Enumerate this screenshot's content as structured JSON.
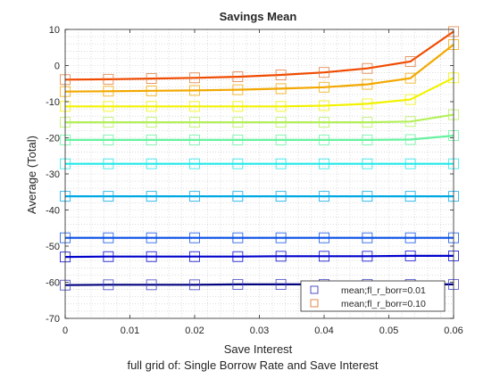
{
  "chart_data": {
    "type": "line",
    "title": "Savings Mean",
    "xlabel": "Save Interest",
    "ylabel": "Average (Total)",
    "subtitle": "full grid of: Single Borrow Rate and Save Interest",
    "xlim": [
      0,
      0.06
    ],
    "ylim": [
      -70,
      10
    ],
    "xticks": [
      0,
      0.01,
      0.02,
      0.03,
      0.04,
      0.05,
      0.06
    ],
    "xtick_labels": [
      "0",
      "0.01",
      "0.02",
      "0.03",
      "0.04",
      "0.05",
      "0.06"
    ],
    "yticks": [
      -70,
      -60,
      -50,
      -40,
      -30,
      -20,
      -10,
      0,
      10
    ],
    "ytick_labels": [
      "-70",
      "-60",
      "-50",
      "-40",
      "-30",
      "-20",
      "-10",
      "0",
      "10"
    ],
    "grid": "minor dotted",
    "legend_position": "bottom-right",
    "x": [
      0,
      0.00667,
      0.01333,
      0.02,
      0.02667,
      0.03333,
      0.04,
      0.04667,
      0.05333,
      0.06
    ],
    "series": [
      {
        "name": "mean;fl_r_borr=0.01",
        "color": "#00007f",
        "marker_color": "#3d3dbf",
        "values": [
          -60.8,
          -60.7,
          -60.7,
          -60.7,
          -60.6,
          -60.6,
          -60.6,
          -60.6,
          -60.6,
          -60.6
        ]
      },
      {
        "name": "",
        "color": "#0000cc",
        "values": [
          -53.0,
          -52.9,
          -52.9,
          -52.9,
          -52.9,
          -52.8,
          -52.8,
          -52.8,
          -52.7,
          -52.7
        ]
      },
      {
        "name": "",
        "color": "#0a50e6",
        "values": [
          -47.7,
          -47.7,
          -47.7,
          -47.7,
          -47.7,
          -47.7,
          -47.7,
          -47.7,
          -47.7,
          -47.7
        ]
      },
      {
        "name": "",
        "color": "#00a8e6",
        "values": [
          -36.2,
          -36.2,
          -36.2,
          -36.2,
          -36.2,
          -36.2,
          -36.2,
          -36.2,
          -36.2,
          -36.2
        ]
      },
      {
        "name": "",
        "color": "#22e8e8",
        "values": [
          -27.2,
          -27.2,
          -27.2,
          -27.2,
          -27.2,
          -27.2,
          -27.2,
          -27.2,
          -27.2,
          -27.2
        ]
      },
      {
        "name": "",
        "color": "#66f2a0",
        "values": [
          -20.6,
          -20.6,
          -20.6,
          -20.6,
          -20.6,
          -20.6,
          -20.6,
          -20.6,
          -20.5,
          -19.4
        ]
      },
      {
        "name": "",
        "color": "#b4f05a",
        "values": [
          -15.7,
          -15.7,
          -15.7,
          -15.7,
          -15.7,
          -15.7,
          -15.7,
          -15.7,
          -15.5,
          -13.6
        ]
      },
      {
        "name": "",
        "color": "#f2f200",
        "values": [
          -11.3,
          -11.3,
          -11.3,
          -11.3,
          -11.3,
          -11.3,
          -11.1,
          -10.6,
          -9.4,
          -3.4
        ]
      },
      {
        "name": "",
        "color": "#f2a800",
        "values": [
          -7.2,
          -7.1,
          -7.0,
          -6.9,
          -6.7,
          -6.4,
          -6.0,
          -5.2,
          -3.5,
          5.8
        ]
      },
      {
        "name": "mean;fl_r_borr=0.10",
        "color": "#f04a00",
        "marker_color": "#e07a3a",
        "values": [
          -3.9,
          -3.8,
          -3.6,
          -3.4,
          -3.1,
          -2.6,
          -1.9,
          -0.8,
          1.1,
          9.4
        ]
      }
    ]
  }
}
